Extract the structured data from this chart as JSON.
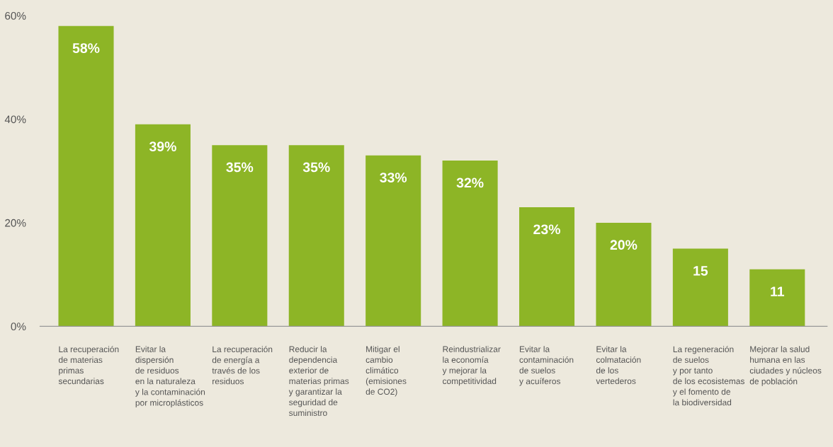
{
  "chart_data": {
    "type": "bar",
    "categories": [
      "La recuperación\nde materias\nprimas\nsecundarias",
      "Evitar la\ndispersión\nde residuos\nen la naturaleza\ny la contaminación\npor microplásticos",
      "La recuperación\nde energía a\ntravés de los\nresiduos",
      "Reducir la\ndependencia\nexterior de\nmaterias primas\ny garantizar la\nseguridad de\nsuministro",
      "Mitigar el\ncambio\nclimático\n(emisiones\nde CO2)",
      "Reindustrializar\nla economía\ny mejorar la\ncompetitividad",
      "Evitar la\ncontaminación\nde suelos\ny acuíferos",
      "Evitar la\ncolmatación\nde los\nvertederos",
      "La regeneración\nde suelos\ny por tanto\nde los ecosistemas\ny el fomento de\nla biodiversidad",
      "Mejorar la salud\nhumana en las\nciudades y núcleos\nde población"
    ],
    "values": [
      58,
      39,
      35,
      35,
      33,
      32,
      23,
      20,
      15,
      11
    ],
    "value_labels": [
      "58%",
      "39%",
      "35%",
      "35%",
      "33%",
      "32%",
      "23%",
      "20%",
      "15",
      "11"
    ],
    "color": "#8db526",
    "ylim": [
      0,
      60
    ],
    "yticks": [
      {
        "value": 0,
        "label": "0%"
      },
      {
        "value": 20,
        "label": "20%"
      },
      {
        "value": 40,
        "label": "40%"
      },
      {
        "value": 60,
        "label": "60%"
      }
    ],
    "grid": false,
    "legend": false
  }
}
